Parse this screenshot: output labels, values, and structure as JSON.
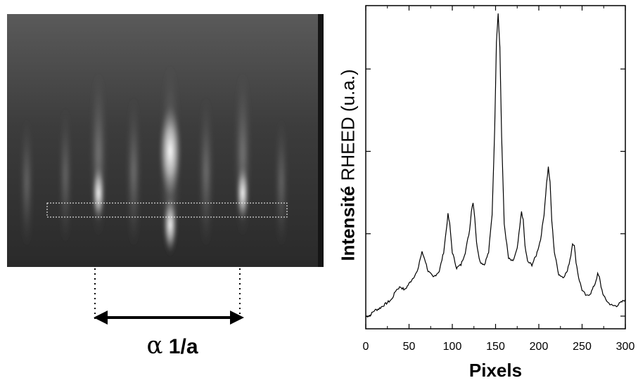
{
  "image_panel": {
    "annotation_label_symbol": "α",
    "annotation_label_text": "1/a"
  },
  "chart_data": {
    "type": "line",
    "title": "",
    "xlabel": "Pixels",
    "ylabel_bold": "Intensité",
    "ylabel_rest": "RHEED (u.a.)",
    "xlim": [
      0,
      300
    ],
    "ylim": [
      0,
      1
    ],
    "x_ticks": [
      0,
      50,
      100,
      150,
      200,
      250,
      300
    ],
    "y_ticks_visible_labels": false,
    "grid": false,
    "series": [
      {
        "x": [
          0,
          5,
          10,
          15,
          20,
          25,
          30,
          35,
          40,
          45,
          50,
          55,
          60,
          62,
          65,
          68,
          72,
          78,
          85,
          90,
          93,
          95,
          97,
          100,
          105,
          110,
          115,
          120,
          122,
          124,
          126,
          128,
          132,
          137,
          142,
          146,
          149,
          151,
          153,
          155,
          157,
          160,
          165,
          170,
          175,
          178,
          180,
          182,
          184,
          187,
          192,
          197,
          202,
          206,
          209,
          211,
          213,
          215,
          218,
          223,
          228,
          233,
          237,
          239,
          241,
          243,
          246,
          250,
          255,
          260,
          265,
          268,
          270,
          272,
          275,
          280,
          285,
          290,
          295,
          300
        ],
        "y": [
          0.025,
          0.03,
          0.045,
          0.05,
          0.06,
          0.07,
          0.08,
          0.11,
          0.12,
          0.11,
          0.13,
          0.15,
          0.17,
          0.2,
          0.23,
          0.21,
          0.17,
          0.15,
          0.17,
          0.23,
          0.3,
          0.35,
          0.32,
          0.23,
          0.18,
          0.19,
          0.23,
          0.3,
          0.36,
          0.39,
          0.34,
          0.26,
          0.2,
          0.19,
          0.23,
          0.35,
          0.62,
          0.9,
          0.99,
          0.88,
          0.6,
          0.32,
          0.21,
          0.2,
          0.24,
          0.31,
          0.36,
          0.33,
          0.25,
          0.2,
          0.19,
          0.22,
          0.27,
          0.35,
          0.45,
          0.5,
          0.45,
          0.33,
          0.23,
          0.16,
          0.15,
          0.17,
          0.22,
          0.26,
          0.25,
          0.2,
          0.15,
          0.11,
          0.09,
          0.1,
          0.13,
          0.16,
          0.15,
          0.12,
          0.09,
          0.07,
          0.06,
          0.06,
          0.07,
          0.08
        ]
      }
    ]
  }
}
